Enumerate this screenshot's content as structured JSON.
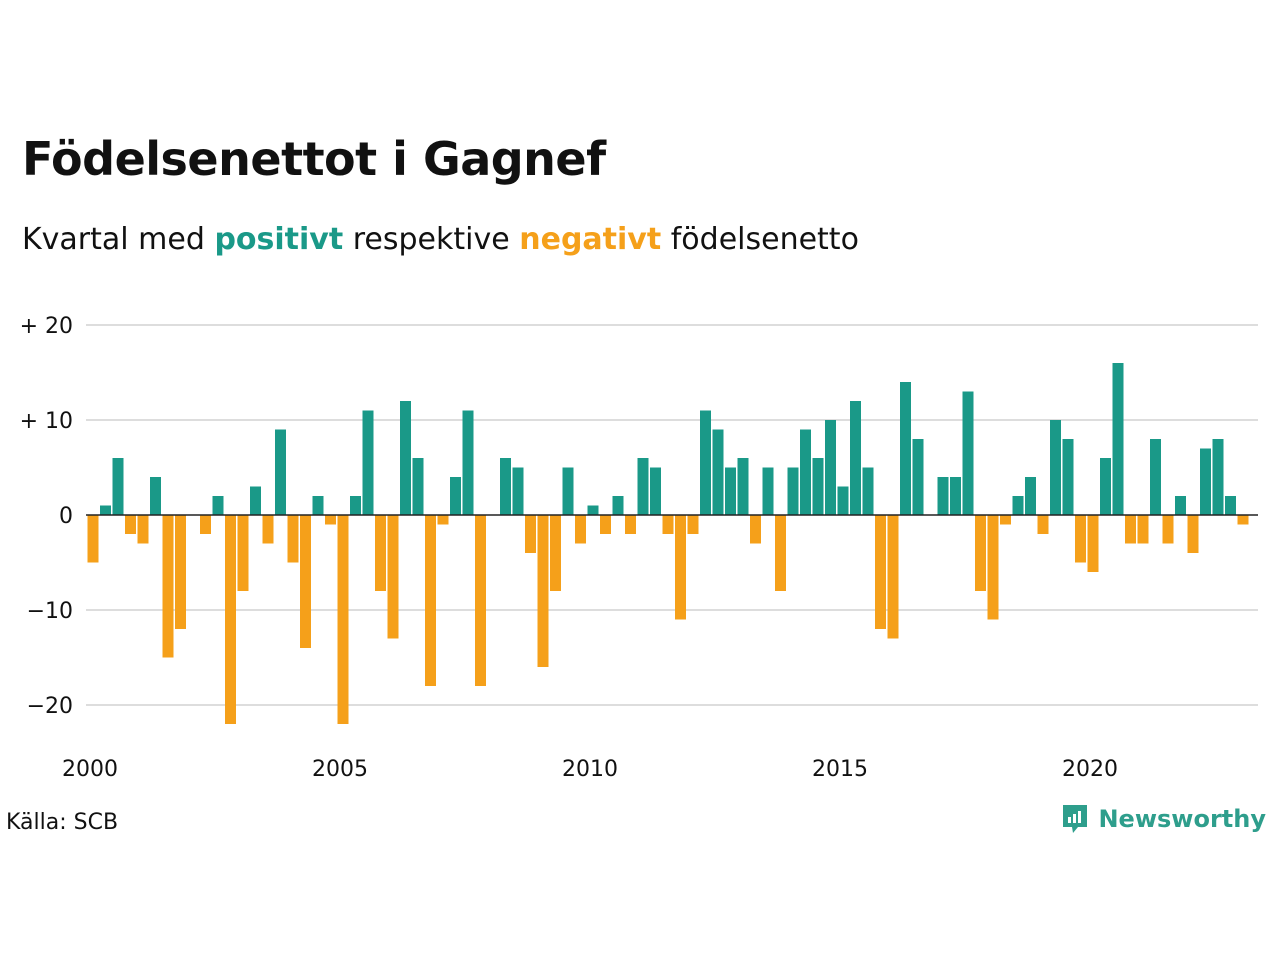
{
  "title": "Födelsenettot i Gagnef",
  "subtitle": {
    "prefix": "Kvartal med",
    "positive_word": "positivt",
    "middle": "respektive",
    "negative_word": "negativt",
    "suffix": "födelsenetto"
  },
  "source": "Källa: SCB",
  "brand": "Newsworthy",
  "colors": {
    "positive": "#1a9988",
    "negative": "#f5a01a",
    "brand": "#2e9e8c",
    "grid": "#dddddd"
  },
  "chart_data": {
    "type": "bar",
    "x_start": "2000 Q1",
    "quarters_per_year": 4,
    "ylim": [
      -24,
      20
    ],
    "yticks": [
      {
        "value": 20,
        "label": "+ 20"
      },
      {
        "value": 10,
        "label": "+ 10"
      },
      {
        "value": 0,
        "label": "0"
      },
      {
        "value": -10,
        "label": "−10"
      },
      {
        "value": -20,
        "label": "−20"
      }
    ],
    "xticks": [
      "2000",
      "2005",
      "2010",
      "2015",
      "2020"
    ],
    "values": [
      -5,
      1,
      6,
      -2,
      -3,
      4,
      -15,
      -12,
      0,
      -2,
      2,
      -22,
      -8,
      3,
      -3,
      9,
      -5,
      -14,
      2,
      -1,
      -22,
      2,
      11,
      -8,
      -13,
      12,
      6,
      -18,
      -1,
      4,
      11,
      -18,
      0,
      6,
      5,
      -4,
      -16,
      -8,
      5,
      -3,
      1,
      -2,
      2,
      -2,
      6,
      5,
      -2,
      -11,
      -2,
      11,
      9,
      5,
      6,
      -3,
      5,
      -8,
      5,
      9,
      6,
      10,
      3,
      12,
      5,
      -12,
      -13,
      14,
      8,
      0,
      4,
      4,
      13,
      -8,
      -11,
      -1,
      2,
      4,
      -2,
      10,
      8,
      -5,
      -6,
      6,
      16,
      -3,
      -3,
      8,
      -3,
      2,
      -4,
      7,
      8,
      2,
      -1
    ]
  }
}
